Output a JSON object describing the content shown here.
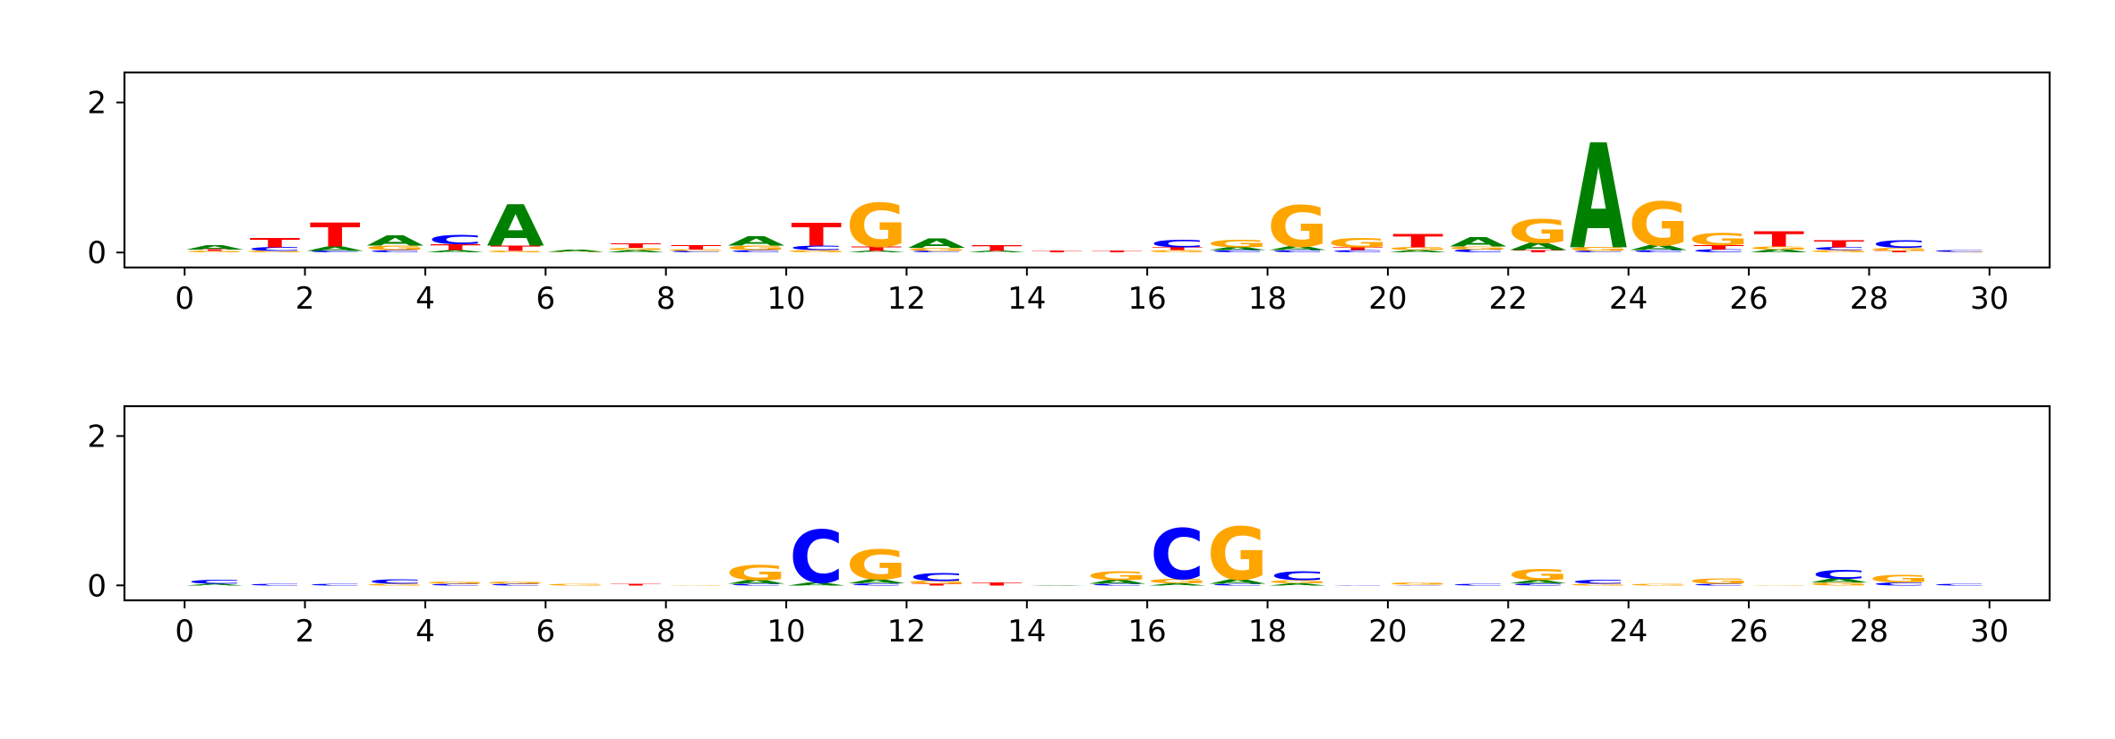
{
  "chart_data": [
    {
      "type": "sequence-logo",
      "xlim": [
        -1,
        31
      ],
      "ylim": [
        -0.2,
        2.4
      ],
      "x_ticks": [
        "0",
        "2",
        "4",
        "6",
        "8",
        "10",
        "12",
        "14",
        "16",
        "18",
        "20",
        "22",
        "24",
        "26",
        "28",
        "30"
      ],
      "y_ticks": [
        "0",
        "2"
      ],
      "colors": {
        "A": "#008000",
        "C": "#0000ff",
        "G": "#ffa500",
        "T": "#ff0000"
      },
      "positions": [
        {
          "x": 0.5,
          "letters": [
            [
              "G",
              0.02
            ],
            [
              "T",
              0.02
            ],
            [
              "A",
              0.06
            ]
          ]
        },
        {
          "x": 1.5,
          "letters": [
            [
              "G",
              0.02
            ],
            [
              "C",
              0.05
            ],
            [
              "T",
              0.12
            ]
          ]
        },
        {
          "x": 2.5,
          "letters": [
            [
              "C",
              0.02
            ],
            [
              "A",
              0.06
            ],
            [
              "T",
              0.32
            ]
          ]
        },
        {
          "x": 3.5,
          "letters": [
            [
              "C",
              0.03
            ],
            [
              "G",
              0.06
            ],
            [
              "A",
              0.14
            ]
          ]
        },
        {
          "x": 4.5,
          "letters": [
            [
              "A",
              0.03
            ],
            [
              "T",
              0.08
            ],
            [
              "C",
              0.12
            ]
          ]
        },
        {
          "x": 5.5,
          "letters": [
            [
              "G",
              0.02
            ],
            [
              "T",
              0.07
            ],
            [
              "A",
              0.55
            ]
          ]
        },
        {
          "x": 6.5,
          "letters": [
            [
              "G",
              0.01
            ],
            [
              "A",
              0.03
            ]
          ]
        },
        {
          "x": 7.5,
          "letters": [
            [
              "A",
              0.03
            ],
            [
              "G",
              0.03
            ],
            [
              "T",
              0.06
            ]
          ]
        },
        {
          "x": 8.5,
          "letters": [
            [
              "C",
              0.02
            ],
            [
              "G",
              0.02
            ],
            [
              "T",
              0.06
            ]
          ]
        },
        {
          "x": 9.5,
          "letters": [
            [
              "C",
              0.03
            ],
            [
              "G",
              0.06
            ],
            [
              "A",
              0.12
            ]
          ]
        },
        {
          "x": 10.5,
          "letters": [
            [
              "G",
              0.03
            ],
            [
              "C",
              0.06
            ],
            [
              "T",
              0.3
            ]
          ]
        },
        {
          "x": 11.5,
          "letters": [
            [
              "A",
              0.02
            ],
            [
              "T",
              0.06
            ],
            [
              "G",
              0.58
            ]
          ]
        },
        {
          "x": 12.5,
          "letters": [
            [
              "C",
              0.02
            ],
            [
              "G",
              0.04
            ],
            [
              "A",
              0.12
            ]
          ]
        },
        {
          "x": 13.5,
          "letters": [
            [
              "A",
              0.02
            ],
            [
              "T",
              0.08
            ]
          ]
        },
        {
          "x": 14.5,
          "letters": [
            [
              "T",
              0.02
            ]
          ]
        },
        {
          "x": 15.5,
          "letters": [
            [
              "T",
              0.02
            ]
          ]
        },
        {
          "x": 16.5,
          "letters": [
            [
              "G",
              0.03
            ],
            [
              "T",
              0.04
            ],
            [
              "C",
              0.1
            ]
          ]
        },
        {
          "x": 17.5,
          "letters": [
            [
              "C",
              0.03
            ],
            [
              "A",
              0.04
            ],
            [
              "G",
              0.1
            ]
          ]
        },
        {
          "x": 18.5,
          "letters": [
            [
              "C",
              0.03
            ],
            [
              "A",
              0.05
            ],
            [
              "G",
              0.55
            ]
          ]
        },
        {
          "x": 19.5,
          "letters": [
            [
              "C",
              0.03
            ],
            [
              "T",
              0.04
            ],
            [
              "G",
              0.12
            ]
          ]
        },
        {
          "x": 20.5,
          "letters": [
            [
              "A",
              0.03
            ],
            [
              "G",
              0.04
            ],
            [
              "T",
              0.18
            ]
          ]
        },
        {
          "x": 21.5,
          "letters": [
            [
              "C",
              0.04
            ],
            [
              "G",
              0.04
            ],
            [
              "A",
              0.12
            ]
          ]
        },
        {
          "x": 22.5,
          "letters": [
            [
              "T",
              0.03
            ],
            [
              "A",
              0.1
            ],
            [
              "G",
              0.32
            ]
          ]
        },
        {
          "x": 23.5,
          "letters": [
            [
              "C",
              0.02
            ],
            [
              "G",
              0.05
            ],
            [
              "A",
              1.4
            ]
          ]
        },
        {
          "x": 24.5,
          "letters": [
            [
              "C",
              0.03
            ],
            [
              "A",
              0.07
            ],
            [
              "G",
              0.58
            ]
          ]
        },
        {
          "x": 25.5,
          "letters": [
            [
              "C",
              0.04
            ],
            [
              "T",
              0.06
            ],
            [
              "G",
              0.16
            ]
          ]
        },
        {
          "x": 26.5,
          "letters": [
            [
              "A",
              0.04
            ],
            [
              "G",
              0.04
            ],
            [
              "T",
              0.2
            ]
          ]
        },
        {
          "x": 27.5,
          "letters": [
            [
              "G",
              0.03
            ],
            [
              "C",
              0.04
            ],
            [
              "T",
              0.09
            ]
          ]
        },
        {
          "x": 28.5,
          "letters": [
            [
              "T",
              0.02
            ],
            [
              "G",
              0.04
            ],
            [
              "C",
              0.1
            ]
          ]
        },
        {
          "x": 29.5,
          "letters": [
            [
              "G",
              0.01
            ],
            [
              "C",
              0.02
            ]
          ]
        }
      ]
    },
    {
      "type": "sequence-logo",
      "xlim": [
        -1,
        31
      ],
      "ylim": [
        -0.2,
        2.4
      ],
      "x_ticks": [
        "0",
        "2",
        "4",
        "6",
        "8",
        "10",
        "12",
        "14",
        "16",
        "18",
        "20",
        "22",
        "24",
        "26",
        "28",
        "30"
      ],
      "y_ticks": [
        "0",
        "2"
      ],
      "colors": {
        "A": "#008000",
        "C": "#0000ff",
        "G": "#ffa500",
        "T": "#ff0000"
      },
      "positions": [
        {
          "x": 0.5,
          "letters": [
            [
              "A",
              0.02
            ],
            [
              "C",
              0.05
            ]
          ]
        },
        {
          "x": 1.5,
          "letters": [
            [
              "C",
              0.02
            ]
          ]
        },
        {
          "x": 2.5,
          "letters": [
            [
              "C",
              0.02
            ]
          ]
        },
        {
          "x": 3.5,
          "letters": [
            [
              "G",
              0.02
            ],
            [
              "C",
              0.06
            ]
          ]
        },
        {
          "x": 4.5,
          "letters": [
            [
              "C",
              0.02
            ],
            [
              "G",
              0.03
            ]
          ]
        },
        {
          "x": 5.5,
          "letters": [
            [
              "C",
              0.02
            ],
            [
              "G",
              0.03
            ]
          ]
        },
        {
          "x": 6.5,
          "letters": [
            [
              "G",
              0.02
            ]
          ]
        },
        {
          "x": 7.5,
          "letters": [
            [
              "T",
              0.02
            ]
          ]
        },
        {
          "x": 8.5,
          "letters": [
            [
              "G",
              0.01
            ]
          ]
        },
        {
          "x": 9.5,
          "letters": [
            [
              "C",
              0.02
            ],
            [
              "A",
              0.05
            ],
            [
              "G",
              0.2
            ]
          ]
        },
        {
          "x": 10.5,
          "letters": [
            [
              "A",
              0.04
            ],
            [
              "C",
              0.7
            ]
          ]
        },
        {
          "x": 11.5,
          "letters": [
            [
              "C",
              0.03
            ],
            [
              "A",
              0.05
            ],
            [
              "G",
              0.4
            ]
          ]
        },
        {
          "x": 12.5,
          "letters": [
            [
              "T",
              0.02
            ],
            [
              "G",
              0.04
            ],
            [
              "C",
              0.11
            ]
          ]
        },
        {
          "x": 13.5,
          "letters": [
            [
              "T",
              0.04
            ]
          ]
        },
        {
          "x": 14.5,
          "letters": [
            [
              "A",
              0.01
            ]
          ]
        },
        {
          "x": 15.5,
          "letters": [
            [
              "C",
              0.02
            ],
            [
              "A",
              0.05
            ],
            [
              "G",
              0.12
            ]
          ]
        },
        {
          "x": 16.5,
          "letters": [
            [
              "A",
              0.03
            ],
            [
              "G",
              0.06
            ],
            [
              "C",
              0.68
            ]
          ]
        },
        {
          "x": 17.5,
          "letters": [
            [
              "C",
              0.02
            ],
            [
              "A",
              0.06
            ],
            [
              "G",
              0.7
            ]
          ]
        },
        {
          "x": 18.5,
          "letters": [
            [
              "A",
              0.03
            ],
            [
              "G",
              0.04
            ],
            [
              "C",
              0.12
            ]
          ]
        },
        {
          "x": 19.5,
          "letters": [
            [
              "C",
              0.01
            ]
          ]
        },
        {
          "x": 20.5,
          "letters": [
            [
              "C",
              0.01
            ],
            [
              "G",
              0.03
            ]
          ]
        },
        {
          "x": 21.5,
          "letters": [
            [
              "C",
              0.02
            ]
          ]
        },
        {
          "x": 22.5,
          "letters": [
            [
              "C",
              0.03
            ],
            [
              "A",
              0.04
            ],
            [
              "G",
              0.15
            ]
          ]
        },
        {
          "x": 23.5,
          "letters": [
            [
              "G",
              0.02
            ],
            [
              "C",
              0.05
            ]
          ]
        },
        {
          "x": 24.5,
          "letters": [
            [
              "G",
              0.02
            ]
          ]
        },
        {
          "x": 25.5,
          "letters": [
            [
              "C",
              0.02
            ],
            [
              "G",
              0.07
            ]
          ]
        },
        {
          "x": 26.5,
          "letters": [
            [
              "G",
              0.01
            ]
          ]
        },
        {
          "x": 27.5,
          "letters": [
            [
              "G",
              0.04
            ],
            [
              "A",
              0.05
            ],
            [
              "C",
              0.12
            ]
          ]
        },
        {
          "x": 28.5,
          "letters": [
            [
              "C",
              0.04
            ],
            [
              "G",
              0.1
            ]
          ]
        },
        {
          "x": 29.5,
          "letters": [
            [
              "C",
              0.02
            ]
          ]
        }
      ]
    }
  ]
}
